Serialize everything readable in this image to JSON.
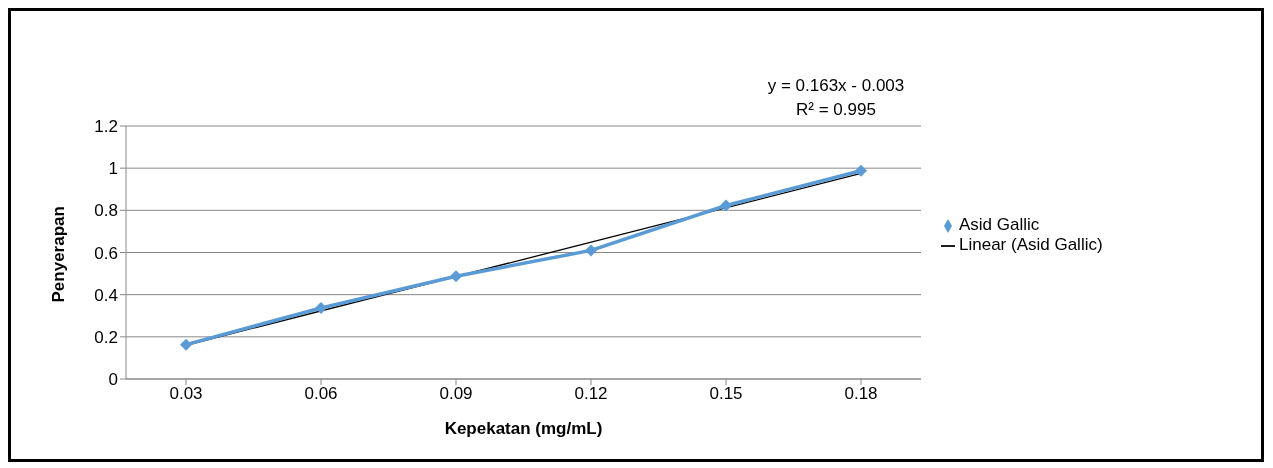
{
  "chart_data": {
    "type": "line",
    "xlabel": "Kepekatan (mg/mL)",
    "ylabel": "Penyerapan",
    "categories": [
      "0.03",
      "0.06",
      "0.09",
      "0.12",
      "0.15",
      "0.18"
    ],
    "series": [
      {
        "name": "Asid Gallic",
        "color": "#5b9bd5",
        "values": [
          0.163,
          0.337,
          0.487,
          0.61,
          0.823,
          0.988
        ],
        "marker": "diamond"
      },
      {
        "name": "Linear (Asid Gallic)",
        "type": "line",
        "color": "#000000",
        "x": [
          "0.03",
          "0.18"
        ],
        "values": [
          0.16,
          0.975
        ],
        "marker": "none"
      }
    ],
    "ylim": [
      0,
      1.2
    ],
    "yticks": [
      0,
      0.2,
      0.4,
      0.6,
      0.8,
      1,
      1.2
    ],
    "grid": "y",
    "legend": "right",
    "annotations": [
      "y = 0.163x - 0.003",
      "R² = 0.995"
    ]
  }
}
